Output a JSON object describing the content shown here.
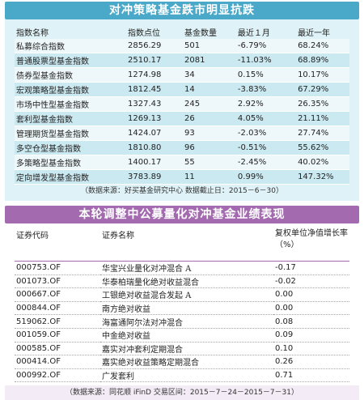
{
  "section1": {
    "title": "对冲策略基金跌市明显抗跌",
    "headers": [
      "指数名称",
      "指数点位",
      "基金数量",
      "最近１月",
      "最近一年"
    ],
    "rows": [
      [
        "私募综合指数",
        "2856.29",
        "501",
        "-6.79%",
        "68.24%"
      ],
      [
        "普通股票型基金指数",
        "2510.17",
        "2081",
        "-11.03%",
        "68.89%"
      ],
      [
        "债券型基金指数",
        "1274.98",
        "34",
        "0.15%",
        "10.17%"
      ],
      [
        "宏观策略型基金指数",
        "1812.45",
        "14",
        "-3.83%",
        "67.29%"
      ],
      [
        "市场中性型基金指数",
        "1327.43",
        "245",
        "2.92%",
        "26.35%"
      ],
      [
        "套利型基金指数",
        "1269.13",
        "26",
        "4.05%",
        "21.11%"
      ],
      [
        "管理期货型基金指数",
        "1424.07",
        "93",
        "-2.03%",
        "27.74%"
      ],
      [
        "多空仓型基金指数",
        "1810.80",
        "96",
        "-0.51%",
        "55.62%"
      ],
      [
        "多策略型基金指数",
        "1400.17",
        "55",
        "-2.45%",
        "40.02%"
      ],
      [
        "定向增发型基金指数",
        "3783.89",
        "11",
        "0.99%",
        "147.32%"
      ]
    ],
    "note": "（数据来源：好买基金研究中心 数据截止日：2015－6－30）"
  },
  "section2": {
    "title": "本轮调整中公募量化对冲基金业绩表现",
    "headers": [
      "证券代码",
      "证券名称",
      "复权单位净值增长率（%）"
    ],
    "rows": [
      [
        "000753.OF",
        "华宝兴业量化对冲混合 A",
        "-0.17"
      ],
      [
        "001073.OF",
        "华泰柏瑞量化绝对收益混合",
        "-0.02"
      ],
      [
        "000667.OF",
        "工银绝对收益混合发起 A",
        "0.00"
      ],
      [
        "000844.OF",
        "南方绝对收益",
        "0.00"
      ],
      [
        "519062.OF",
        "海富通阿尔法对冲混合",
        "0.08"
      ],
      [
        "001059.OF",
        "中金绝对收益",
        "0.09"
      ],
      [
        "000585.OF",
        "嘉实对冲套利定期混合",
        "0.10"
      ],
      [
        "000414.OF",
        "嘉实绝对收益策略定期混合",
        "0.26"
      ],
      [
        "000992.OF",
        "广发套利",
        "0.71"
      ]
    ],
    "note": "（数据来源：同花顺 iFinD 交易区间：2015－7－24－2015－7－31）"
  }
}
